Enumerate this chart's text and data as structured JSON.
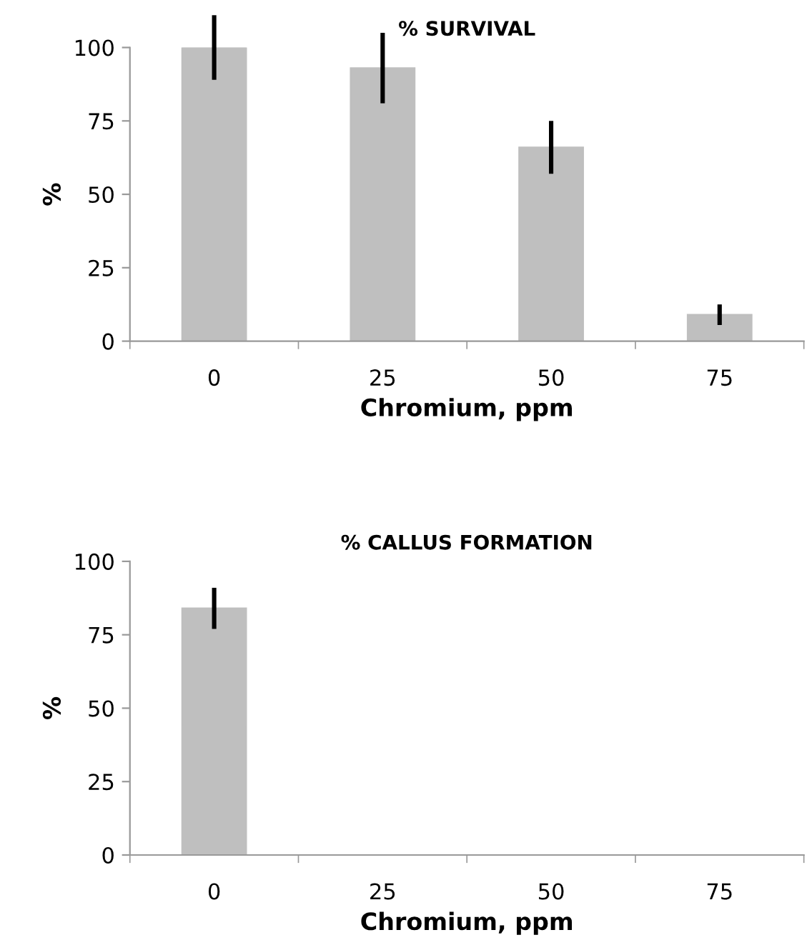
{
  "chart_data": [
    {
      "type": "bar",
      "title": "% SURVIVAL",
      "xlabel": "Chromium, ppm",
      "ylabel": "%",
      "categories": [
        "0",
        "25",
        "50",
        "75"
      ],
      "values": [
        100,
        93,
        66,
        9
      ],
      "errors": [
        11,
        12,
        9,
        3.5
      ],
      "color": "#bfbfbf",
      "ylim": [
        0,
        100
      ],
      "yticks": [
        0,
        25,
        50,
        75,
        100
      ],
      "grid": false,
      "legend": false
    },
    {
      "type": "bar",
      "title": "% CALLUS FORMATION",
      "xlabel": "Chromium, ppm",
      "ylabel": "%",
      "categories": [
        "0",
        "25",
        "50",
        "75"
      ],
      "values": [
        84,
        0,
        0,
        0
      ],
      "errors": [
        7,
        null,
        null,
        null
      ],
      "color": "#bfbfbf",
      "ylim": [
        0,
        100
      ],
      "yticks": [
        0,
        25,
        50,
        75,
        100
      ],
      "grid": false,
      "legend": false
    }
  ]
}
